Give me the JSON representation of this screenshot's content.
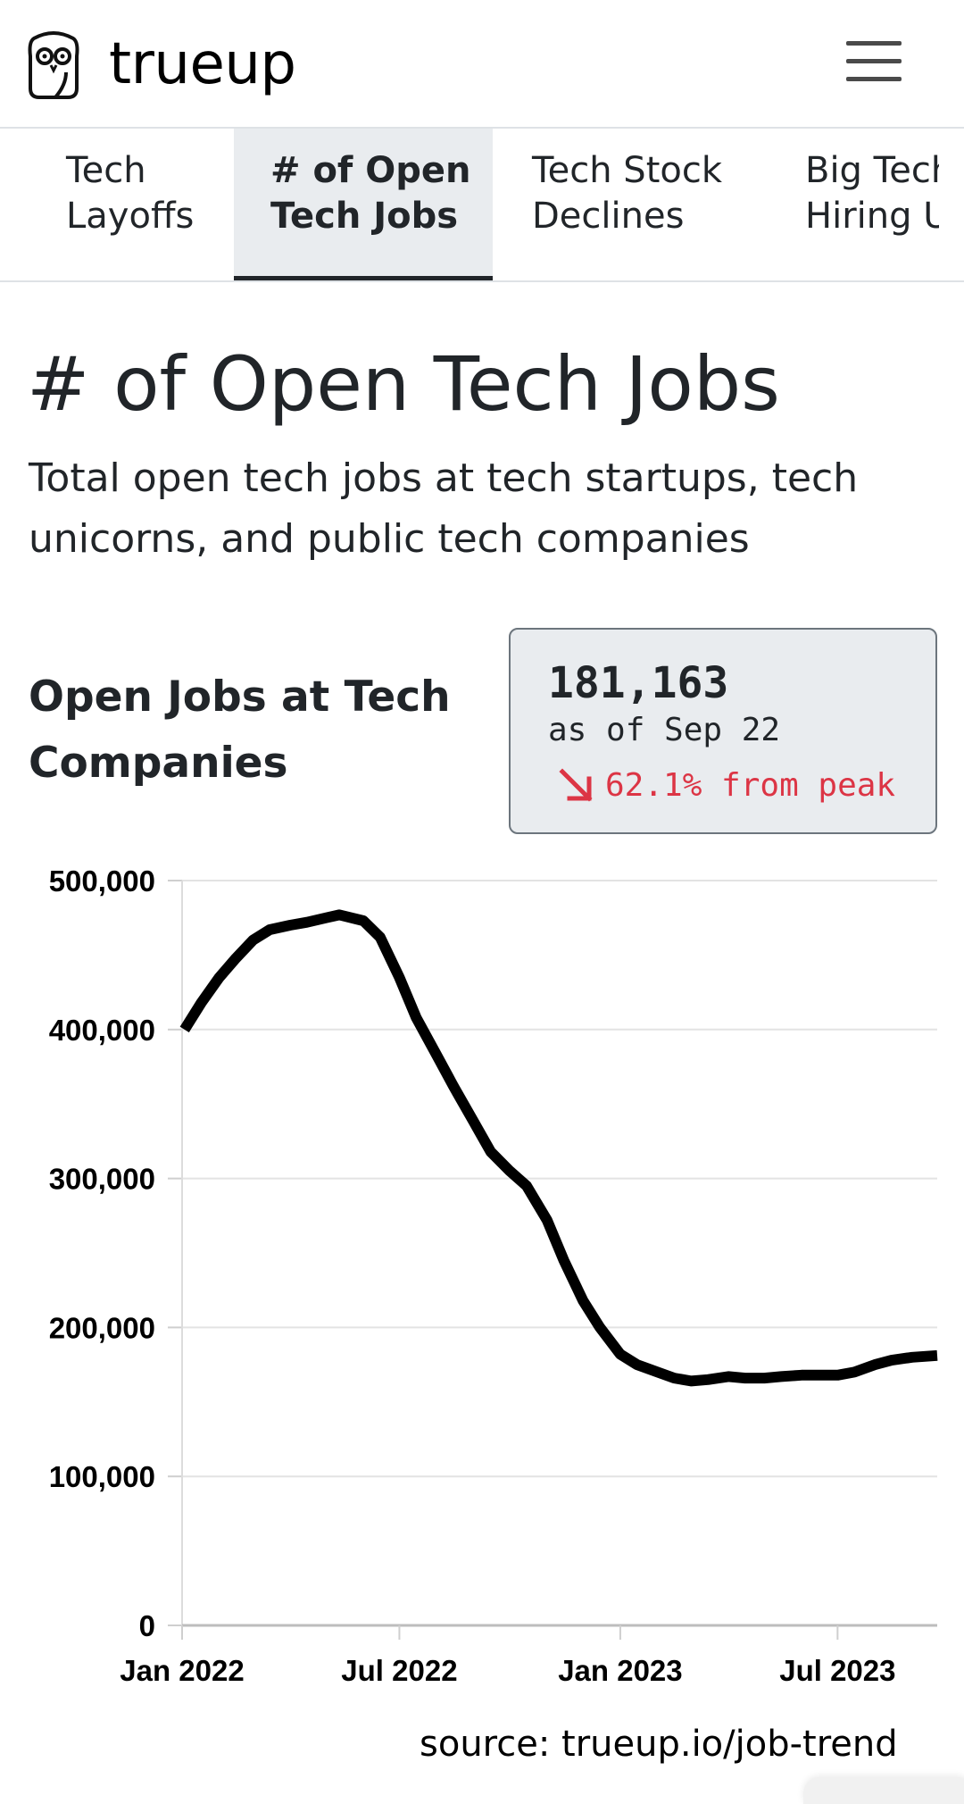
{
  "brand": {
    "name": "trueup"
  },
  "nav": {
    "tabs": [
      {
        "label": "Tech\nLayoffs",
        "active": false
      },
      {
        "label": "# of Open\nTech Jobs",
        "active": true
      },
      {
        "label": "Tech Stock\nDeclines",
        "active": false
      },
      {
        "label": "Big Tech\nHiring U",
        "active": false
      }
    ]
  },
  "page": {
    "title": "# of Open Tech Jobs",
    "subtitle": "Total open tech jobs at tech startups, tech unicorns, and public tech companies"
  },
  "chart_heading": "Open Jobs at Tech Companies",
  "stat": {
    "value": "181,163",
    "as_of": "as of Sep 22",
    "change": "62.1% from peak",
    "change_color": "#dc3545"
  },
  "source": "source: trueup.io/job-trend",
  "chart_data": {
    "type": "line",
    "title": "Open Jobs at Tech Companies",
    "xlabel": "",
    "ylabel": "",
    "ylim": [
      0,
      500000
    ],
    "y_ticks": [
      "0",
      "100,000",
      "200,000",
      "300,000",
      "400,000",
      "500,000"
    ],
    "x_ticks": [
      {
        "label": "Jan 2022",
        "date": "2022-01-01"
      },
      {
        "label": "Jul 2022",
        "date": "2022-07-01"
      },
      {
        "label": "Jan 2023",
        "date": "2023-01-01"
      },
      {
        "label": "Jul 2023",
        "date": "2023-07-01"
      }
    ],
    "xlim": [
      "2022-01-01",
      "2023-09-22"
    ],
    "grid": true,
    "line_color": "#000000",
    "series": [
      {
        "x": [
          "2022-01-03",
          "2022-01-17",
          "2022-02-01",
          "2022-02-15",
          "2022-03-01",
          "2022-03-15",
          "2022-04-01",
          "2022-04-15",
          "2022-05-01",
          "2022-05-12",
          "2022-06-01",
          "2022-06-15",
          "2022-07-01",
          "2022-07-15",
          "2022-08-01",
          "2022-08-15",
          "2022-09-01",
          "2022-09-15",
          "2022-10-01",
          "2022-10-15",
          "2022-11-01",
          "2022-11-15",
          "2022-12-01",
          "2022-12-15",
          "2023-01-01",
          "2023-01-15",
          "2023-02-01",
          "2023-02-15",
          "2023-03-01",
          "2023-03-15",
          "2023-04-01",
          "2023-04-15",
          "2023-05-01",
          "2023-05-15",
          "2023-06-01",
          "2023-06-15",
          "2023-07-01",
          "2023-07-15",
          "2023-08-01",
          "2023-08-15",
          "2023-09-01",
          "2023-09-22"
        ],
        "y": [
          400000,
          418000,
          435000,
          448000,
          460000,
          467000,
          470000,
          472000,
          475000,
          477000,
          473000,
          462000,
          435000,
          408000,
          383000,
          362000,
          338000,
          318000,
          305000,
          295000,
          272000,
          245000,
          218000,
          200000,
          182000,
          175000,
          170000,
          166000,
          164000,
          165000,
          167000,
          166000,
          166000,
          167000,
          168000,
          168000,
          168000,
          170000,
          175000,
          178000,
          180000,
          181163
        ]
      }
    ]
  }
}
